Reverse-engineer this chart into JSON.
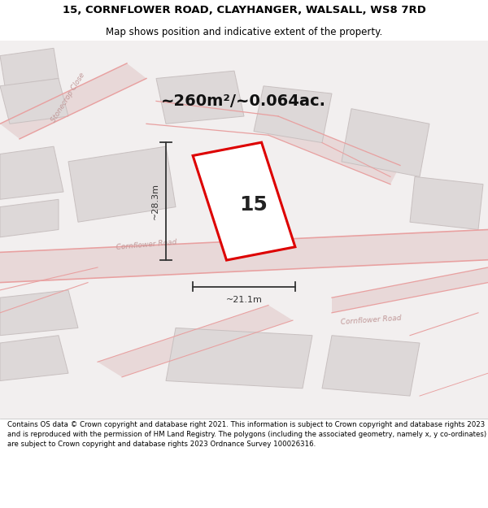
{
  "title": "15, CORNFLOWER ROAD, CLAYHANGER, WALSALL, WS8 7RD",
  "subtitle": "Map shows position and indicative extent of the property.",
  "footer": "Contains OS data © Crown copyright and database right 2021. This information is subject to Crown copyright and database rights 2023 and is reproduced with the permission of HM Land Registry. The polygons (including the associated geometry, namely x, y co-ordinates) are subject to Crown copyright and database rights 2023 Ordnance Survey 100026316.",
  "area_text": "~260m²/~0.064ac.",
  "width_text": "~21.1m",
  "height_text": "~28.3m",
  "property_number": "15",
  "map_bg": "#f2efef",
  "road_line_color": "#e8a0a0",
  "building_fill": "#ddd8d8",
  "building_edge": "#c8c0c0",
  "road_fill": "#e8d8d8",
  "plot_color": "#dd0000",
  "plot_fill": "#ffffff",
  "plot_lw": 2.0,
  "dim_color": "#333333",
  "title_fontsize": 9.5,
  "subtitle_fontsize": 8.5,
  "footer_fontsize": 6.2,
  "area_fontsize": 14,
  "dim_fontsize": 8,
  "number_fontsize": 18
}
